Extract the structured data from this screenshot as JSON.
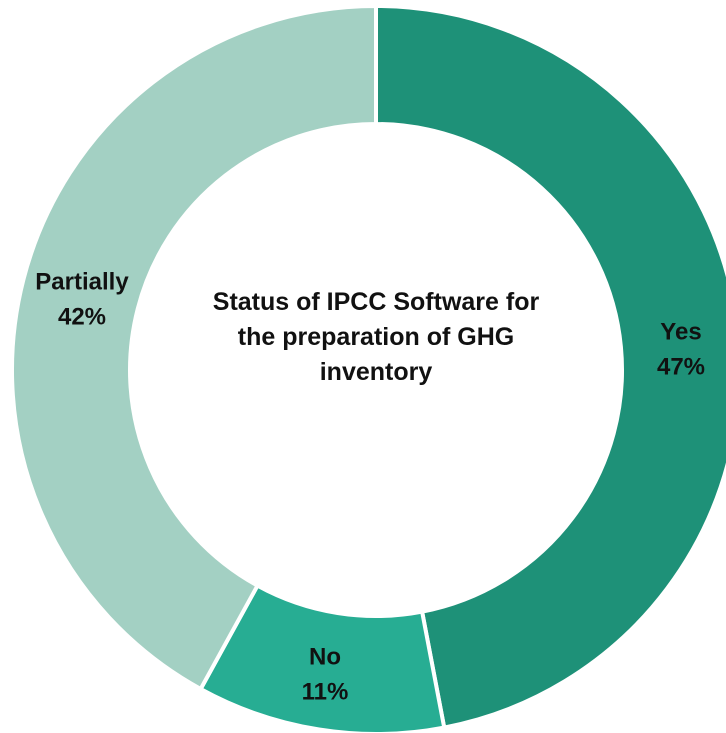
{
  "chart_data": {
    "type": "donut",
    "title": "Status of IPCC Software for the preparation of GHG inventory",
    "categories": [
      "Yes",
      "No",
      "Partially"
    ],
    "values": [
      47,
      11,
      42
    ],
    "value_labels": [
      "47%",
      "11%",
      "42%"
    ],
    "colors": [
      "#1e9178",
      "#27ad93",
      "#a3d0c3"
    ]
  }
}
